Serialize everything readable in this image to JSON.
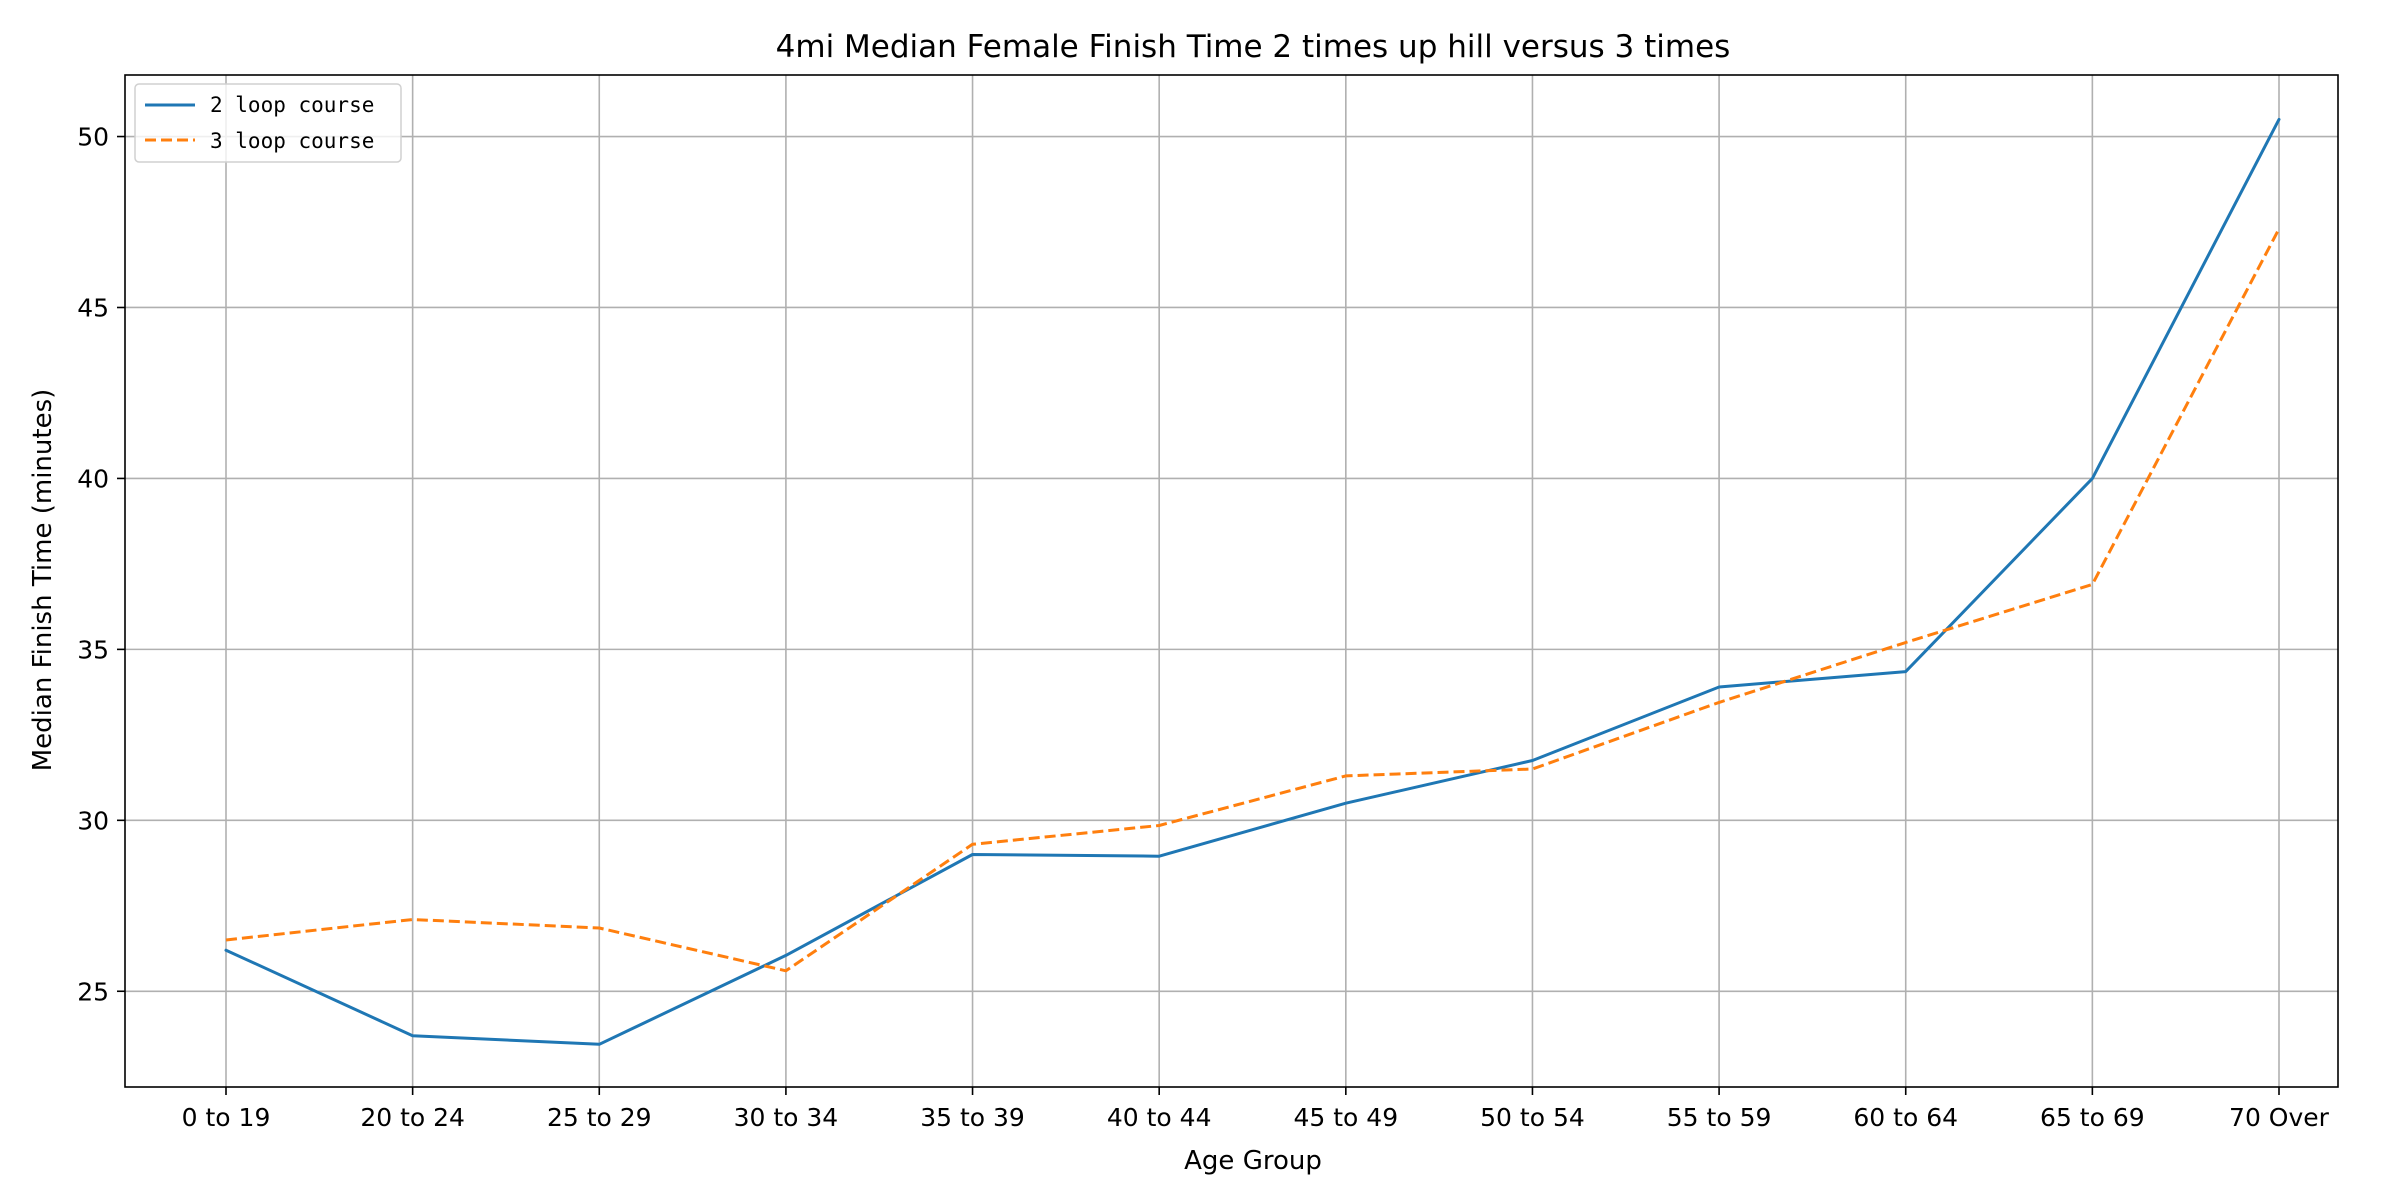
{
  "chart_data": {
    "type": "line",
    "title": "4mi Median Female Finish Time 2 times up hill versus 3 times",
    "xlabel": "Age Group",
    "ylabel": "Median Finish Time (minutes)",
    "categories": [
      "0 to 19",
      "20 to 24",
      "25 to 29",
      "30 to 34",
      "35 to 39",
      "40 to 44",
      "45 to 49",
      "50 to 54",
      "55 to 59",
      "60 to 64",
      "65 to 69",
      "70 Over"
    ],
    "ylim": [
      22.2,
      51.8
    ],
    "yticks": [
      25,
      30,
      35,
      40,
      45,
      50
    ],
    "grid": true,
    "legend_position": "top-left",
    "series": [
      {
        "name": "2 loop course",
        "color": "#1f77b4",
        "style": "solid",
        "values": [
          26.2,
          23.7,
          23.45,
          26.05,
          29.0,
          28.95,
          30.5,
          31.75,
          33.9,
          34.35,
          40.0,
          50.5
        ]
      },
      {
        "name": "3 loop course",
        "color": "#ff7f0e",
        "style": "dashed",
        "values": [
          26.5,
          27.1,
          26.85,
          25.6,
          29.3,
          29.85,
          31.3,
          31.5,
          33.45,
          35.2,
          36.9,
          47.3
        ]
      }
    ]
  }
}
